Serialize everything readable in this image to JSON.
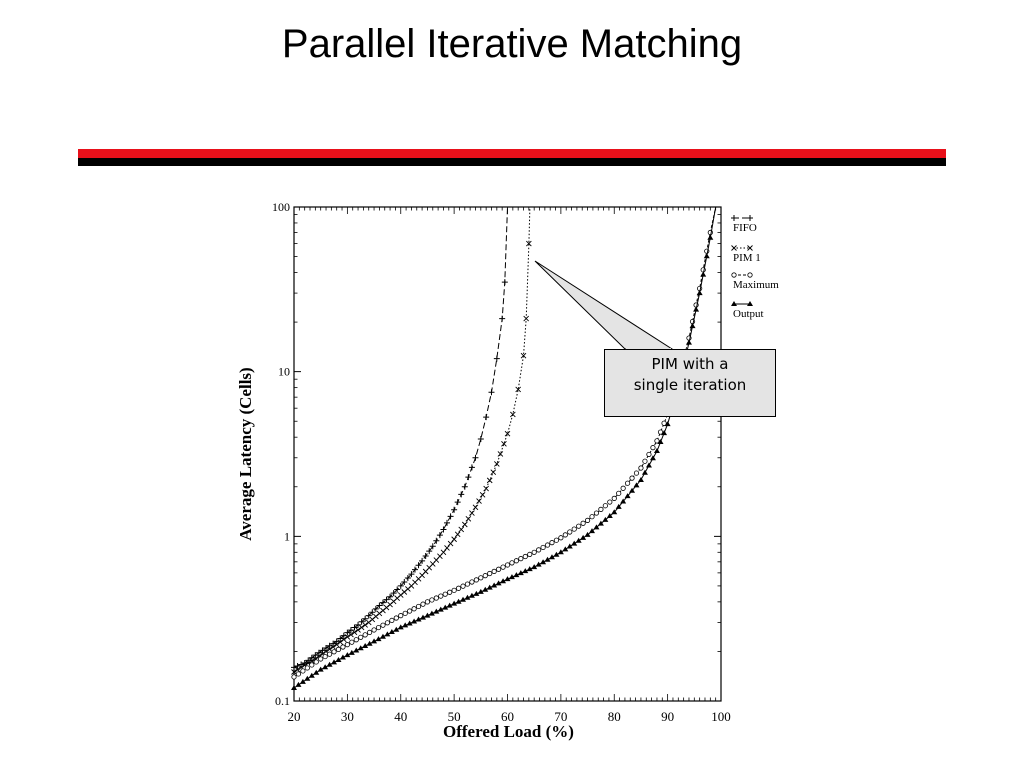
{
  "slide": {
    "title": "Parallel Iterative Matching"
  },
  "callout": {
    "line1": "PIM with a",
    "line2": "single iteration"
  },
  "chart_data": {
    "type": "line",
    "xlabel": "Offered Load (%)",
    "ylabel": "Average Latency (Cells)",
    "xlim": [
      20,
      100
    ],
    "ylim": [
      0.1,
      100
    ],
    "yscale": "log",
    "grid": false,
    "legend_placement": "right",
    "x_ticks": [
      "20",
      "30",
      "40",
      "50",
      "60",
      "70",
      "80",
      "90",
      "100"
    ],
    "y_ticks": [
      {
        "value": 0.1,
        "label": "0.1"
      },
      {
        "value": 1,
        "label": "1"
      },
      {
        "value": 10,
        "label": "10"
      },
      {
        "value": 100,
        "label": "100"
      }
    ],
    "series": [
      {
        "name": "FIFO",
        "marker": "+",
        "dash": "6,3",
        "points": [
          [
            20,
            0.16
          ],
          [
            22,
            0.17
          ],
          [
            24,
            0.19
          ],
          [
            26,
            0.21
          ],
          [
            28,
            0.23
          ],
          [
            30,
            0.26
          ],
          [
            32,
            0.29
          ],
          [
            34,
            0.33
          ],
          [
            36,
            0.38
          ],
          [
            38,
            0.43
          ],
          [
            40,
            0.5
          ],
          [
            42,
            0.59
          ],
          [
            44,
            0.71
          ],
          [
            46,
            0.87
          ],
          [
            48,
            1.1
          ],
          [
            50,
            1.45
          ],
          [
            52,
            2.0
          ],
          [
            54,
            3.0
          ],
          [
            55,
            3.9
          ],
          [
            56,
            5.3
          ],
          [
            57,
            7.5
          ],
          [
            58,
            12
          ],
          [
            59,
            21
          ],
          [
            59.5,
            35
          ],
          [
            60,
            100
          ]
        ]
      },
      {
        "name": "PIM 1",
        "marker": "x",
        "dash": "1.5,2",
        "points": [
          [
            20,
            0.15
          ],
          [
            22,
            0.165
          ],
          [
            24,
            0.18
          ],
          [
            26,
            0.2
          ],
          [
            28,
            0.22
          ],
          [
            30,
            0.245
          ],
          [
            32,
            0.27
          ],
          [
            34,
            0.3
          ],
          [
            36,
            0.34
          ],
          [
            38,
            0.385
          ],
          [
            40,
            0.44
          ],
          [
            42,
            0.5
          ],
          [
            44,
            0.58
          ],
          [
            46,
            0.68
          ],
          [
            48,
            0.8
          ],
          [
            50,
            0.96
          ],
          [
            52,
            1.18
          ],
          [
            54,
            1.5
          ],
          [
            56,
            1.95
          ],
          [
            58,
            2.75
          ],
          [
            60,
            4.2
          ],
          [
            61,
            5.5
          ],
          [
            62,
            7.8
          ],
          [
            63,
            12.5
          ],
          [
            63.5,
            21
          ],
          [
            64,
            60
          ],
          [
            64.2,
            100
          ]
        ]
      },
      {
        "name": "Maximum",
        "marker": "o",
        "dash": "3,2",
        "points": [
          [
            20,
            0.14
          ],
          [
            25,
            0.18
          ],
          [
            30,
            0.22
          ],
          [
            35,
            0.27
          ],
          [
            40,
            0.33
          ],
          [
            45,
            0.4
          ],
          [
            50,
            0.47
          ],
          [
            55,
            0.56
          ],
          [
            60,
            0.67
          ],
          [
            65,
            0.8
          ],
          [
            70,
            0.98
          ],
          [
            75,
            1.25
          ],
          [
            80,
            1.7
          ],
          [
            85,
            2.6
          ],
          [
            88,
            3.8
          ],
          [
            90,
            5.5
          ],
          [
            92,
            9
          ],
          [
            94,
            16
          ],
          [
            96,
            32
          ],
          [
            98,
            70
          ],
          [
            99,
            100
          ]
        ]
      },
      {
        "name": "Output",
        "marker": "triangle",
        "dash": "",
        "points": [
          [
            20,
            0.12
          ],
          [
            25,
            0.155
          ],
          [
            30,
            0.19
          ],
          [
            35,
            0.23
          ],
          [
            40,
            0.28
          ],
          [
            45,
            0.33
          ],
          [
            50,
            0.39
          ],
          [
            55,
            0.46
          ],
          [
            60,
            0.55
          ],
          [
            65,
            0.65
          ],
          [
            70,
            0.8
          ],
          [
            75,
            1.02
          ],
          [
            80,
            1.4
          ],
          [
            85,
            2.2
          ],
          [
            88,
            3.3
          ],
          [
            90,
            4.8
          ],
          [
            92,
            8
          ],
          [
            94,
            15
          ],
          [
            96,
            30
          ],
          [
            98,
            65
          ],
          [
            99,
            100
          ]
        ]
      }
    ]
  }
}
